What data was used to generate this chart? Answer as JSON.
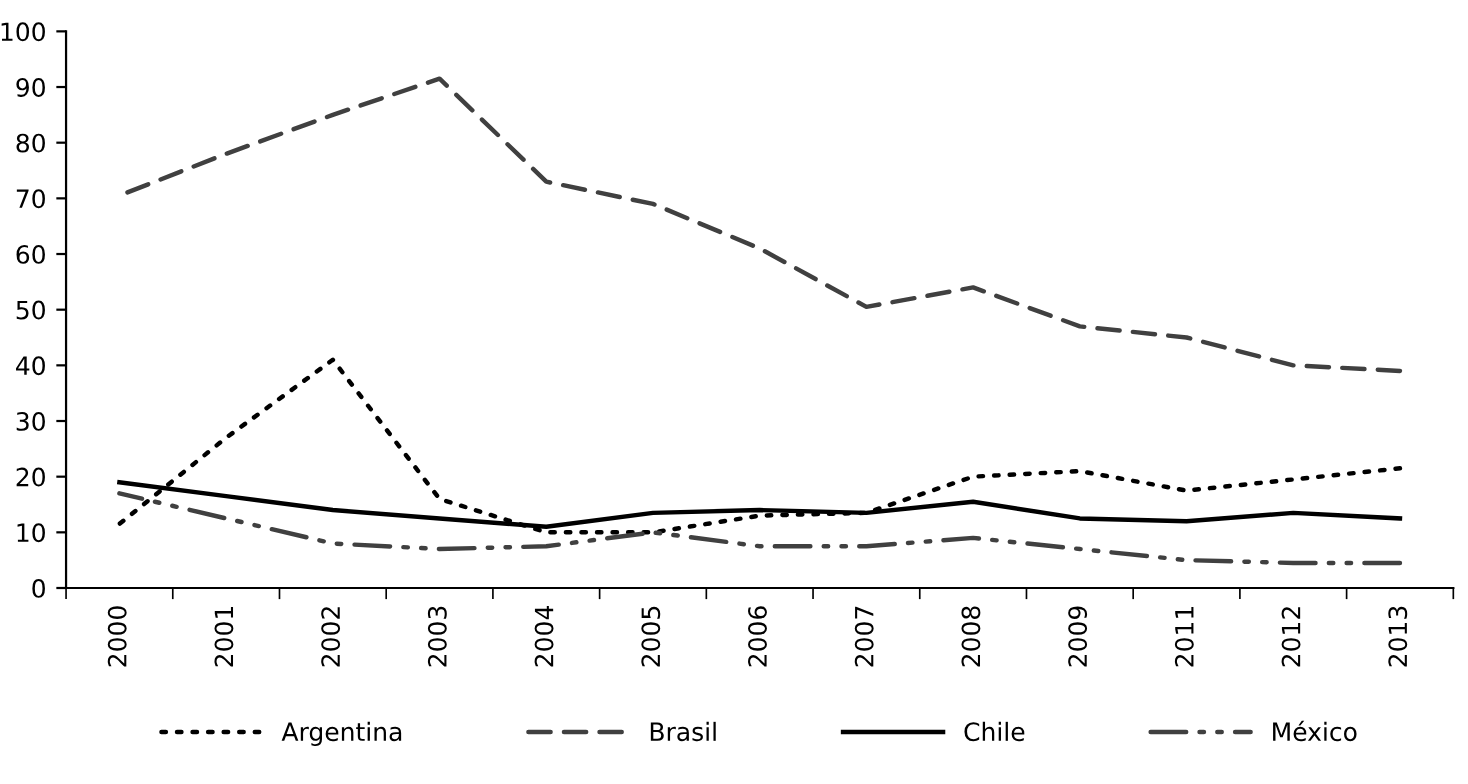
{
  "chart_data": {
    "type": "line",
    "categories": [
      "2000",
      "2001",
      "2002",
      "2003",
      "2004",
      "2005",
      "2006",
      "2007",
      "2008",
      "2009",
      "2011",
      "2012",
      "2013"
    ],
    "series": [
      {
        "name": "Argentina",
        "color": "#000000",
        "line_style": "dotted",
        "values": [
          11.5,
          27,
          41,
          16,
          10,
          10,
          13,
          13.5,
          20,
          21,
          17.5,
          19.5,
          21.5
        ]
      },
      {
        "name": "Brasil",
        "color": "#404040",
        "line_style": "dashed",
        "values": [
          70.5,
          78,
          85,
          91.5,
          73,
          69,
          61,
          50.5,
          54,
          47,
          45,
          40,
          39
        ]
      },
      {
        "name": "Chile",
        "color": "#000000",
        "line_style": "solid",
        "values": [
          19,
          16.5,
          14,
          12.5,
          11,
          13.5,
          14,
          13.5,
          15.5,
          12.5,
          12,
          13.5,
          12.5
        ]
      },
      {
        "name": "México",
        "color": "#404040",
        "line_style": "dashdot",
        "values": [
          17,
          12.5,
          8,
          7,
          7.5,
          10,
          7.5,
          7.5,
          9,
          7,
          5,
          4.5,
          4.5
        ]
      }
    ],
    "ylim": [
      0,
      100
    ],
    "yticks": [
      0,
      10,
      20,
      30,
      40,
      50,
      60,
      70,
      80,
      90,
      100
    ],
    "grid": false,
    "legend": "bottom",
    "marker": "none"
  }
}
